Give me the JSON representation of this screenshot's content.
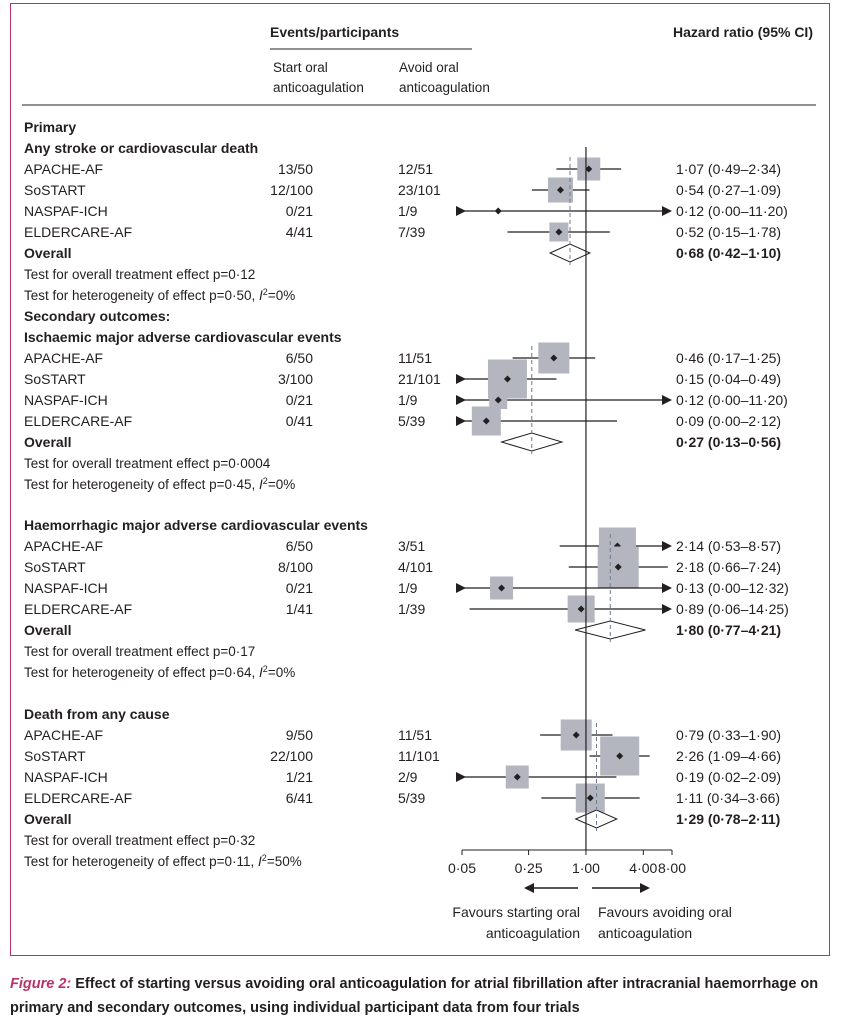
{
  "header": {
    "events_title": "Events/participants",
    "col_start": [
      "Start oral",
      "anticoagulation"
    ],
    "col_avoid": [
      "Avoid oral",
      "anticoagulation"
    ],
    "hr_title": "Hazard ratio (95% CI)"
  },
  "chart_data": {
    "type": "forest",
    "x_scale": "log",
    "xlim": [
      0.05,
      8.0
    ],
    "xticks": [
      0.05,
      0.25,
      1.0,
      4.0,
      8.0
    ],
    "xtick_labels": [
      "0·05",
      "0·25",
      "1·00",
      "4·00",
      "8·00"
    ],
    "favours_left": [
      "Favours starting oral",
      "anticoagulation"
    ],
    "favours_right": [
      "Favours avoiding oral",
      "anticoagulation"
    ],
    "section_label": "Primary",
    "secondary_label": "Secondary outcomes:",
    "groups": [
      {
        "title": "Any stroke or cardiovascular death",
        "rows": [
          {
            "trial": "APACHE-AF",
            "start": "13/50",
            "avoid": "12/51",
            "hr": 1.07,
            "lo": 0.49,
            "hi": 2.34,
            "w": 0.55,
            "label": "1·07 (0·49–2·34)"
          },
          {
            "trial": "SoSTART",
            "start": "12/100",
            "avoid": "23/101",
            "hr": 0.54,
            "lo": 0.27,
            "hi": 1.09,
            "w": 0.65,
            "label": "0·54 (0·27–1·09)"
          },
          {
            "trial": "NASPAF-ICH",
            "start": "0/21",
            "avoid": "1/9",
            "hr": 0.12,
            "lo": 0.0,
            "hi": 11.2,
            "w": 0.0,
            "label": "0·12 (0·00–11·20)"
          },
          {
            "trial": "ELDERCARE-AF",
            "start": "4/41",
            "avoid": "7/39",
            "hr": 0.52,
            "lo": 0.15,
            "hi": 1.78,
            "w": 0.35,
            "label": "0·52 (0·15–1·78)"
          }
        ],
        "overall": {
          "label": "Overall",
          "hr": 0.68,
          "lo": 0.42,
          "hi": 1.1,
          "text": "0·68 (0·42–1·10)"
        },
        "test_effect": "Test for overall treatment effect p=0·12",
        "test_het": "Test for heterogeneity of effect p=0·50,",
        "i2": "=0%"
      },
      {
        "title": "Ischaemic major adverse cardiovascular events",
        "rows": [
          {
            "trial": "APACHE-AF",
            "start": "6/50",
            "avoid": "11/51",
            "hr": 0.46,
            "lo": 0.17,
            "hi": 1.25,
            "w": 0.95,
            "label": "0·46 (0·17–1·25)"
          },
          {
            "trial": "SoSTART",
            "start": "3/100",
            "avoid": "21/101",
            "hr": 0.15,
            "lo": 0.04,
            "hi": 0.49,
            "w": 1.35,
            "label": "0·15 (0·04–0·49)"
          },
          {
            "trial": "NASPAF-ICH",
            "start": "0/21",
            "avoid": "1/9",
            "hr": 0.12,
            "lo": 0.0,
            "hi": 11.2,
            "w": 0.3,
            "label": "0·12 (0·00–11·20)"
          },
          {
            "trial": "ELDERCARE-AF",
            "start": "0/41",
            "avoid": "5/39",
            "hr": 0.09,
            "lo": 0.0,
            "hi": 2.12,
            "w": 0.85,
            "label": "0·09 (0·00–2·12)"
          }
        ],
        "overall": {
          "label": "Overall",
          "hr": 0.27,
          "lo": 0.13,
          "hi": 0.56,
          "text": "0·27 (0·13–0·56)"
        },
        "test_effect": "Test for overall treatment effect p=0·0004",
        "test_het": "Test for heterogeneity of effect p=0·45,",
        "i2": "=0%"
      },
      {
        "title": "Haemorrhagic major adverse cardiovascular events",
        "rows": [
          {
            "trial": "APACHE-AF",
            "start": "6/50",
            "avoid": "3/51",
            "hr": 2.14,
            "lo": 0.53,
            "hi": 8.57,
            "w": 1.25,
            "label": "2·14 (0·53–8·57)"
          },
          {
            "trial": "SoSTART",
            "start": "8/100",
            "avoid": "4/101",
            "hr": 2.18,
            "lo": 0.66,
            "hi": 7.24,
            "w": 1.45,
            "label": "2·18 (0·66–7·24)"
          },
          {
            "trial": "NASPAF-ICH",
            "start": "0/21",
            "avoid": "1/9",
            "hr": 0.13,
            "lo": 0.0,
            "hi": 12.32,
            "w": 0.55,
            "label": "0·13 (0·00–12·32)"
          },
          {
            "trial": "ELDERCARE-AF",
            "start": "1/41",
            "avoid": "1/39",
            "hr": 0.89,
            "lo": 0.06,
            "hi": 14.25,
            "w": 0.75,
            "label": "0·89 (0·06–14·25)"
          }
        ],
        "overall": {
          "label": "Overall",
          "hr": 1.8,
          "lo": 0.77,
          "hi": 4.21,
          "text": "1·80 (0·77–4·21)"
        },
        "test_effect": "Test for overall treatment effect p=0·17",
        "test_het": "Test for heterogeneity of effect p=0·64,",
        "i2": "=0%"
      },
      {
        "title": "Death from any cause",
        "rows": [
          {
            "trial": "APACHE-AF",
            "start": "9/50",
            "avoid": "11/51",
            "hr": 0.79,
            "lo": 0.33,
            "hi": 1.9,
            "w": 0.95,
            "label": "0·79 (0·33–1·90)"
          },
          {
            "trial": "SoSTART",
            "start": "22/100",
            "avoid": "11/101",
            "hr": 2.26,
            "lo": 1.09,
            "hi": 4.66,
            "w": 1.35,
            "label": "2·26 (1·09–4·66)"
          },
          {
            "trial": "NASPAF-ICH",
            "start": "1/21",
            "avoid": "2/9",
            "hr": 0.19,
            "lo": 0.02,
            "hi": 2.09,
            "w": 0.55,
            "label": "0·19 (0·02–2·09)"
          },
          {
            "trial": "ELDERCARE-AF",
            "start": "6/41",
            "avoid": "5/39",
            "hr": 1.11,
            "lo": 0.34,
            "hi": 3.66,
            "w": 0.85,
            "label": "1·11 (0·34–3·66)"
          }
        ],
        "overall": {
          "label": "Overall",
          "hr": 1.29,
          "lo": 0.78,
          "hi": 2.11,
          "text": "1·29 (0·78–2·11)"
        },
        "test_effect": "Test for overall treatment effect p=0·32",
        "test_het": "Test for heterogeneity of effect p=0·11,",
        "i2": "=50%"
      }
    ]
  },
  "caption": {
    "figure_label": "Figure 2:",
    "text": "Effect of starting versus avoiding oral anticoagulation for atrial fibrillation after intracranial haemorrhage on primary and secondary outcomes, using individual participant data from four trials"
  },
  "colors": {
    "accent": "#b7336a",
    "box": "#b3b6bf",
    "ink": "#231f20"
  }
}
